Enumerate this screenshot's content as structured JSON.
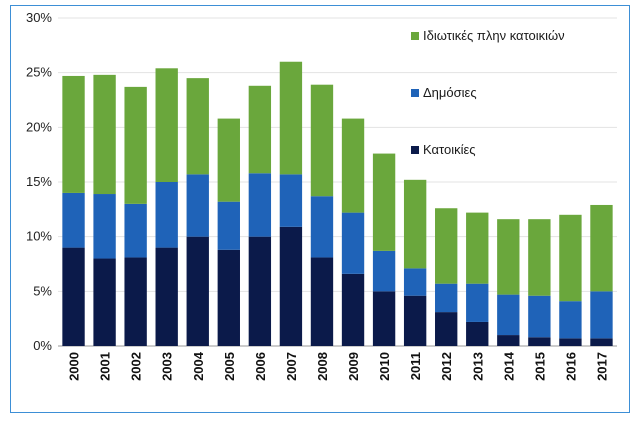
{
  "chart_data": {
    "type": "bar",
    "stacked": true,
    "title": "",
    "xlabel": "",
    "ylabel": "",
    "ylim": [
      0,
      30
    ],
    "y_ticks": [
      "0%",
      "5%",
      "10%",
      "15%",
      "20%",
      "25%",
      "30%"
    ],
    "y_tick_values": [
      0,
      5,
      10,
      15,
      20,
      25,
      30
    ],
    "grid": true,
    "legend_position": "top-right",
    "categories": [
      "2000",
      "2001",
      "2002",
      "2003",
      "2004",
      "2005",
      "2006",
      "2007",
      "2008",
      "2009",
      "2010",
      "2011",
      "2012",
      "2013",
      "2014",
      "2015",
      "2016",
      "2017"
    ],
    "series": [
      {
        "name": "Κατοικίες",
        "color": "#0b1a4a",
        "values": [
          9.0,
          8.0,
          8.1,
          9.0,
          10.0,
          8.8,
          10.0,
          10.9,
          8.1,
          6.6,
          5.0,
          4.6,
          3.1,
          2.2,
          1.0,
          0.8,
          0.7,
          0.7
        ]
      },
      {
        "name": "Δημόσιες",
        "color": "#1f63b8",
        "values": [
          5.0,
          5.9,
          4.9,
          6.0,
          5.7,
          4.4,
          5.8,
          4.8,
          5.6,
          5.6,
          3.7,
          2.5,
          2.6,
          3.5,
          3.7,
          3.8,
          3.4,
          4.3
        ]
      },
      {
        "name": "Ιδιωτικές πλην κατοικιών",
        "color": "#6aa73c",
        "values": [
          10.7,
          10.9,
          10.7,
          10.4,
          8.8,
          7.6,
          8.0,
          10.3,
          10.2,
          8.6,
          8.9,
          8.1,
          6.9,
          6.5,
          6.9,
          7.0,
          7.9,
          7.9
        ]
      }
    ],
    "legend_order": [
      "Ιδιωτικές πλην κατοικιών",
      "Δημόσιες",
      "Κατοικίες"
    ]
  }
}
